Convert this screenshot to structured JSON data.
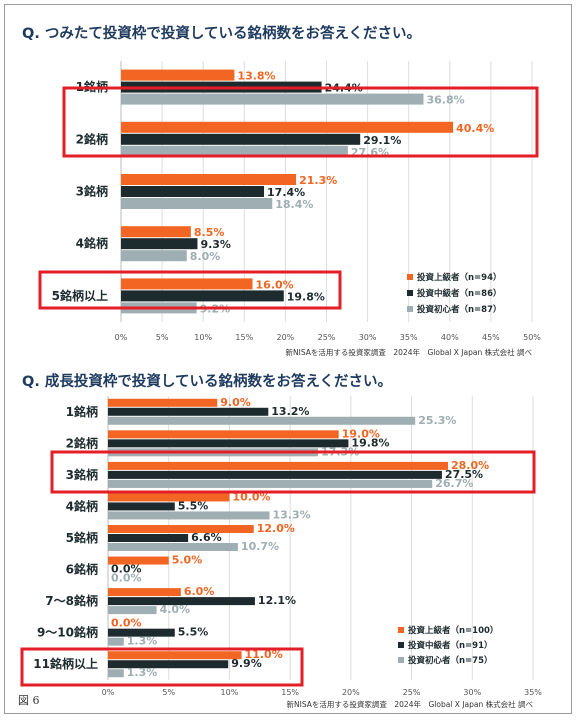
{
  "figure_label": "図 6",
  "colors": {
    "advanced": "#f26522",
    "intermediate": "#1d2b2f",
    "beginner": "#9eaeb2",
    "highlight": "#e41e26",
    "title": "#1e3a5f"
  },
  "chart_data": [
    {
      "type": "bar",
      "orientation": "horizontal",
      "title": "Q. つみたて投資枠で投資している銘柄数をお答えください。",
      "source": "新NISAを活用する投資家調査　2024年　Global X Japan 株式会社 調べ",
      "categories": [
        "1銘柄",
        "2銘柄",
        "3銘柄",
        "4銘柄",
        "5銘柄以上"
      ],
      "series": [
        {
          "name": "投資上級者（n=94）",
          "values": [
            13.8,
            40.4,
            21.3,
            8.5,
            16.0
          ],
          "labels": [
            "13.8%",
            "40.4%",
            "21.3%",
            "8.5%",
            "16.0%"
          ]
        },
        {
          "name": "投資中級者（n=86）",
          "values": [
            24.4,
            29.1,
            17.4,
            9.3,
            19.8
          ],
          "labels": [
            "24.4%",
            "29.1%",
            "17.4%",
            "9.3%",
            "19.8%"
          ]
        },
        {
          "name": "投資初心者（n=87）",
          "values": [
            36.8,
            27.6,
            18.4,
            8.0,
            9.2
          ],
          "labels": [
            "36.8%",
            "27.6%",
            "18.4%",
            "8.0%",
            "9.2%"
          ]
        }
      ],
      "x_ticks": [
        "0%",
        "5%",
        "10%",
        "15%",
        "20%",
        "25%",
        "30%",
        "35%",
        "40%",
        "45%",
        "50%"
      ],
      "xlim": [
        0,
        50
      ],
      "highlighted_categories": [
        "2銘柄",
        "5銘柄以上"
      ],
      "legend_position": "bottom-right"
    },
    {
      "type": "bar",
      "orientation": "horizontal",
      "title": "Q. 成長投資枠で投資している銘柄数をお答えください。",
      "source": "新NISAを活用する投資家調査　2024年　Global X Japan 株式会社 調べ",
      "categories": [
        "1銘柄",
        "2銘柄",
        "3銘柄",
        "4銘柄",
        "5銘柄",
        "6銘柄",
        "7〜8銘柄",
        "9〜10銘柄",
        "11銘柄以上"
      ],
      "series": [
        {
          "name": "投資上級者（n=100）",
          "values": [
            9.0,
            19.0,
            28.0,
            10.0,
            12.0,
            5.0,
            6.0,
            0.0,
            11.0
          ],
          "labels": [
            "9.0%",
            "19.0%",
            "28.0%",
            "10.0%",
            "12.0%",
            "5.0%",
            "6.0%",
            "0.0%",
            "11.0%"
          ]
        },
        {
          "name": "投資中級者（n=91）",
          "values": [
            13.2,
            19.8,
            27.5,
            5.5,
            6.6,
            0.0,
            12.1,
            5.5,
            9.9
          ],
          "labels": [
            "13.2%",
            "19.8%",
            "27.5%",
            "5.5%",
            "6.6%",
            "0.0%",
            "12.1%",
            "5.5%",
            "9.9%"
          ]
        },
        {
          "name": "投資初心者（n=75）",
          "values": [
            25.3,
            17.3,
            26.7,
            13.3,
            10.7,
            0.0,
            4.0,
            1.3,
            1.3
          ],
          "labels": [
            "25.3%",
            "17.3%",
            "26.7%",
            "13.3%",
            "10.7%",
            "0.0%",
            "4.0%",
            "1.3%",
            "1.3%"
          ]
        }
      ],
      "x_ticks": [
        "0%",
        "5%",
        "10%",
        "15%",
        "20%",
        "25%",
        "30%",
        "35%"
      ],
      "xlim": [
        0,
        35
      ],
      "highlighted_categories": [
        "3銘柄",
        "11銘柄以上"
      ],
      "legend_position": "bottom-right"
    }
  ]
}
